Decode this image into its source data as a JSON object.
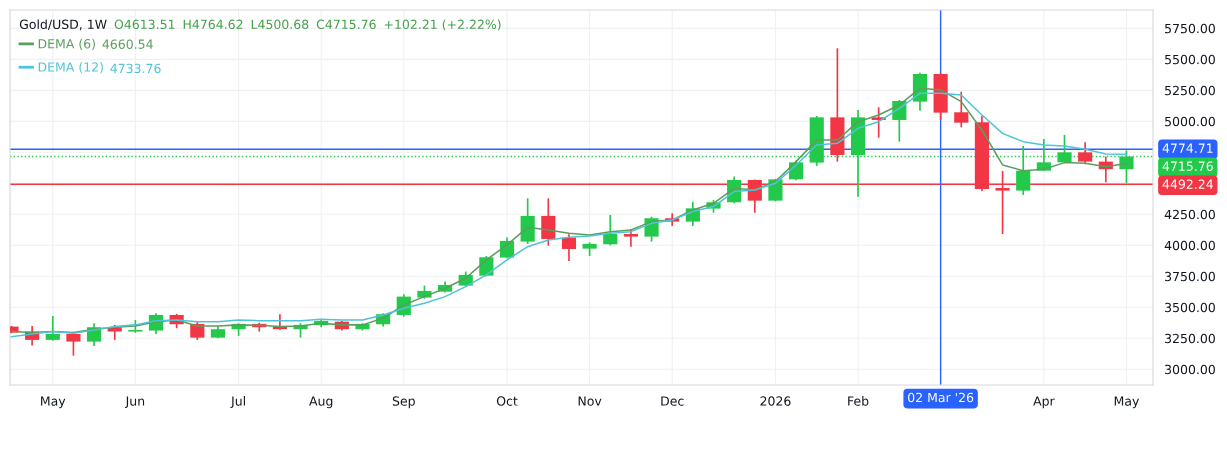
{
  "chart_data": {
    "type": "candlestick",
    "title": "Gold/USD, 1W",
    "annotations": [
      "O4613.51",
      "H4764.62",
      "L4500.68",
      "C4715.76",
      "+102.21 (+2.22%)",
      "4660.54",
      "4733.76"
    ],
    "x": [
      "2025-04-21",
      "2025-04-28",
      "2025-05-05",
      "2025-05-12",
      "2025-05-19",
      "2025-05-26",
      "2025-06-02",
      "2025-06-09",
      "2025-06-16",
      "2025-06-23",
      "2025-06-30",
      "2025-07-07",
      "2025-07-14",
      "2025-07-21",
      "2025-07-28",
      "2025-08-04",
      "2025-08-11",
      "2025-08-18",
      "2025-08-25",
      "2025-09-01",
      "2025-09-08",
      "2025-09-15",
      "2025-09-22",
      "2025-09-29",
      "2025-10-06",
      "2025-10-13",
      "2025-10-20",
      "2025-10-27",
      "2025-11-03",
      "2025-11-10",
      "2025-11-17",
      "2025-11-24",
      "2025-12-01",
      "2025-12-08",
      "2025-12-15",
      "2025-12-22",
      "2025-12-29",
      "2026-01-05",
      "2026-01-12",
      "2026-01-19",
      "2026-01-26",
      "2026-02-02",
      "2026-02-09",
      "2026-02-16",
      "2026-02-23",
      "2026-03-02",
      "2026-03-09",
      "2026-03-16",
      "2026-03-23",
      "2026-03-30",
      "2026-04-06",
      "2026-04-13",
      "2026-04-20",
      "2026-04-27",
      "2026-05-04"
    ],
    "ohlc": [
      [
        3344,
        3350,
        3290,
        3296
      ],
      [
        3304,
        3349,
        3191,
        3237
      ],
      [
        3237,
        3430,
        3230,
        3285
      ],
      [
        3285,
        3290,
        3110,
        3223
      ],
      [
        3223,
        3371,
        3188,
        3339
      ],
      [
        3339,
        3358,
        3237,
        3304
      ],
      [
        3304,
        3398,
        3295,
        3317
      ],
      [
        3312,
        3452,
        3285,
        3438
      ],
      [
        3438,
        3446,
        3331,
        3363
      ],
      [
        3366,
        3384,
        3237,
        3255
      ],
      [
        3255,
        3349,
        3250,
        3323
      ],
      [
        3323,
        3371,
        3269,
        3366
      ],
      [
        3366,
        3376,
        3304,
        3339
      ],
      [
        3344,
        3444,
        3318,
        3323
      ],
      [
        3323,
        3371,
        3255,
        3358
      ],
      [
        3355,
        3403,
        3339,
        3390
      ],
      [
        3384,
        3390,
        3312,
        3323
      ],
      [
        3323,
        3371,
        3312,
        3366
      ],
      [
        3363,
        3452,
        3344,
        3444
      ],
      [
        3438,
        3605,
        3425,
        3586
      ],
      [
        3578,
        3675,
        3570,
        3632
      ],
      [
        3626,
        3707,
        3620,
        3680
      ],
      [
        3675,
        3788,
        3670,
        3761
      ],
      [
        3755,
        3914,
        3750,
        3903
      ],
      [
        3901,
        4062,
        3895,
        4035
      ],
      [
        4030,
        4379,
        4011,
        4237
      ],
      [
        4237,
        4379,
        3997,
        4051
      ],
      [
        4062,
        4089,
        3874,
        3970
      ],
      [
        3973,
        4024,
        3914,
        4011
      ],
      [
        4008,
        4245,
        4000,
        4091
      ],
      [
        4091,
        4132,
        3989,
        4070
      ],
      [
        4070,
        4231,
        4030,
        4218
      ],
      [
        4218,
        4258,
        4156,
        4191
      ],
      [
        4191,
        4352,
        4156,
        4298
      ],
      [
        4296,
        4366,
        4263,
        4347
      ],
      [
        4347,
        4554,
        4340,
        4527
      ],
      [
        4527,
        4530,
        4263,
        4360
      ],
      [
        4360,
        4535,
        4355,
        4532
      ],
      [
        4532,
        4683,
        4525,
        4669
      ],
      [
        4667,
        5043,
        4640,
        5032
      ],
      [
        5032,
        5589,
        4675,
        4728
      ],
      [
        4728,
        5091,
        4392,
        5032
      ],
      [
        5032,
        5113,
        4868,
        5011
      ],
      [
        5011,
        5172,
        4836,
        5164
      ],
      [
        5159,
        5392,
        5086,
        5382
      ],
      [
        5382,
        5392,
        5011,
        5070
      ],
      [
        5073,
        5239,
        4952,
        4989
      ],
      [
        4992,
        5043,
        4438,
        4454
      ],
      [
        4462,
        4599,
        4091,
        4441
      ],
      [
        4441,
        4801,
        4406,
        4602
      ],
      [
        4602,
        4857,
        4600,
        4669
      ],
      [
        4669,
        4890,
        4665,
        4750
      ],
      [
        4750,
        4831,
        4653,
        4675
      ],
      [
        4675,
        4715,
        4508,
        4613.55
      ],
      [
        4613.51,
        4764.62,
        4500.68,
        4715.76
      ]
    ],
    "colors": [
      "#f23645",
      "#f23645",
      "#22c94a",
      "#f23645",
      "#22c94a",
      "#f23645",
      "#22c94a",
      "#22c94a",
      "#f23645",
      "#f23645",
      "#22c94a",
      "#22c94a",
      "#f23645",
      "#f23645",
      "#22c94a",
      "#22c94a",
      "#f23645",
      "#22c94a",
      "#22c94a",
      "#22c94a",
      "#22c94a",
      "#22c94a",
      "#22c94a",
      "#22c94a",
      "#22c94a",
      "#22c94a",
      "#f23645",
      "#f23645",
      "#22c94a",
      "#22c94a",
      "#f23645",
      "#22c94a",
      "#f23645",
      "#22c94a",
      "#22c94a",
      "#22c94a",
      "#f23645",
      "#22c94a",
      "#22c94a",
      "#22c94a",
      "#f23645",
      "#22c94a",
      "#f23645",
      "#22c94a",
      "#22c94a",
      "#f23645",
      "#f23645",
      "#f23645",
      "#f23645",
      "#22c94a",
      "#22c94a",
      "#22c94a",
      "#f23645",
      "#f23645",
      "#22c94a"
    ],
    "series": [
      {
        "name": "DEMA (6)",
        "type": "line",
        "color": "#5a9e5c",
        "values": [
          3304,
          3296,
          3304,
          3296,
          3323,
          3339,
          3349,
          3384,
          3398,
          3349,
          3349,
          3358,
          3355,
          3344,
          3349,
          3371,
          3358,
          3358,
          3411,
          3519,
          3586,
          3653,
          3734,
          3882,
          4003,
          4145,
          4124,
          4097,
          4083,
          4110,
          4124,
          4191,
          4204,
          4285,
          4339,
          4460,
          4446,
          4515,
          4675,
          4849,
          4849,
          4997,
          5051,
          5132,
          5266,
          5253,
          5159,
          4930,
          4648,
          4602,
          4613,
          4667,
          4661,
          4634,
          4660.54
        ]
      },
      {
        "name": "DEMA (12)",
        "type": "line",
        "color": "#4fc3d9",
        "values": [
          3263,
          3285,
          3304,
          3290,
          3317,
          3344,
          3358,
          3392,
          3398,
          3384,
          3384,
          3398,
          3392,
          3392,
          3392,
          3403,
          3398,
          3398,
          3438,
          3492,
          3532,
          3586,
          3667,
          3761,
          3882,
          3989,
          4043,
          4065,
          4075,
          4097,
          4110,
          4177,
          4204,
          4272,
          4312,
          4433,
          4446,
          4500,
          4648,
          4809,
          4823,
          4944,
          4997,
          5105,
          5226,
          5226,
          5212,
          5051,
          4903,
          4836,
          4809,
          4801,
          4774,
          4737,
          4733.76
        ]
      }
    ],
    "xlim": [
      "2025-04-20T12:00",
      "2026-05-13"
    ],
    "xticks": [
      {
        "value": "2025-05-05",
        "label": "May"
      },
      {
        "value": "2025-06-02",
        "label": "Jun"
      },
      {
        "value": "2025-07-07",
        "label": "Jul"
      },
      {
        "value": "2025-08-04",
        "label": "Aug"
      },
      {
        "value": "2025-09-01",
        "label": "Sep"
      },
      {
        "value": "2025-10-06",
        "label": "Oct"
      },
      {
        "value": "2025-11-03",
        "label": "Nov"
      },
      {
        "value": "2025-12-01",
        "label": "Dec"
      },
      {
        "value": "2026-01-05",
        "label": "2026"
      },
      {
        "value": "2026-02-02",
        "label": "Feb"
      },
      {
        "value": "2026-04-06",
        "label": "Apr"
      },
      {
        "value": "2026-05-04",
        "label": "May"
      }
    ],
    "ylim": [
      2873,
      5898
    ],
    "yticks": [
      {
        "value": 3000,
        "label": "3000.00"
      },
      {
        "value": 3250,
        "label": "3250.00"
      },
      {
        "value": 3500,
        "label": "3500.00"
      },
      {
        "value": 3750,
        "label": "3750.00"
      },
      {
        "value": 4000,
        "label": "4000.00"
      },
      {
        "value": 4250,
        "label": "4250.00"
      },
      {
        "value": 4500,
        "label": null
      },
      {
        "value": 4750,
        "label": null
      },
      {
        "value": 5000,
        "label": "5000.00"
      },
      {
        "value": 5250,
        "label": "5250.00"
      },
      {
        "value": 5500,
        "label": "5500.00"
      },
      {
        "value": 5750,
        "label": "5750.00"
      }
    ],
    "ref_lines": [
      {
        "axis": "y",
        "value": 4774.71,
        "label": "4774.71",
        "color": "#2962ff"
      },
      {
        "axis": "y",
        "value": 4715.76,
        "label": "4715.76",
        "color": "#22c94a",
        "line_style": "dotted"
      },
      {
        "axis": "y",
        "value": 4492.24,
        "label": "4492.24",
        "color": "#f23645"
      },
      {
        "axis": "x",
        "value": "2026-03-02",
        "label": "02 Mar '26",
        "color": "#2962ff"
      }
    ],
    "grid": true,
    "legend": "top left"
  }
}
